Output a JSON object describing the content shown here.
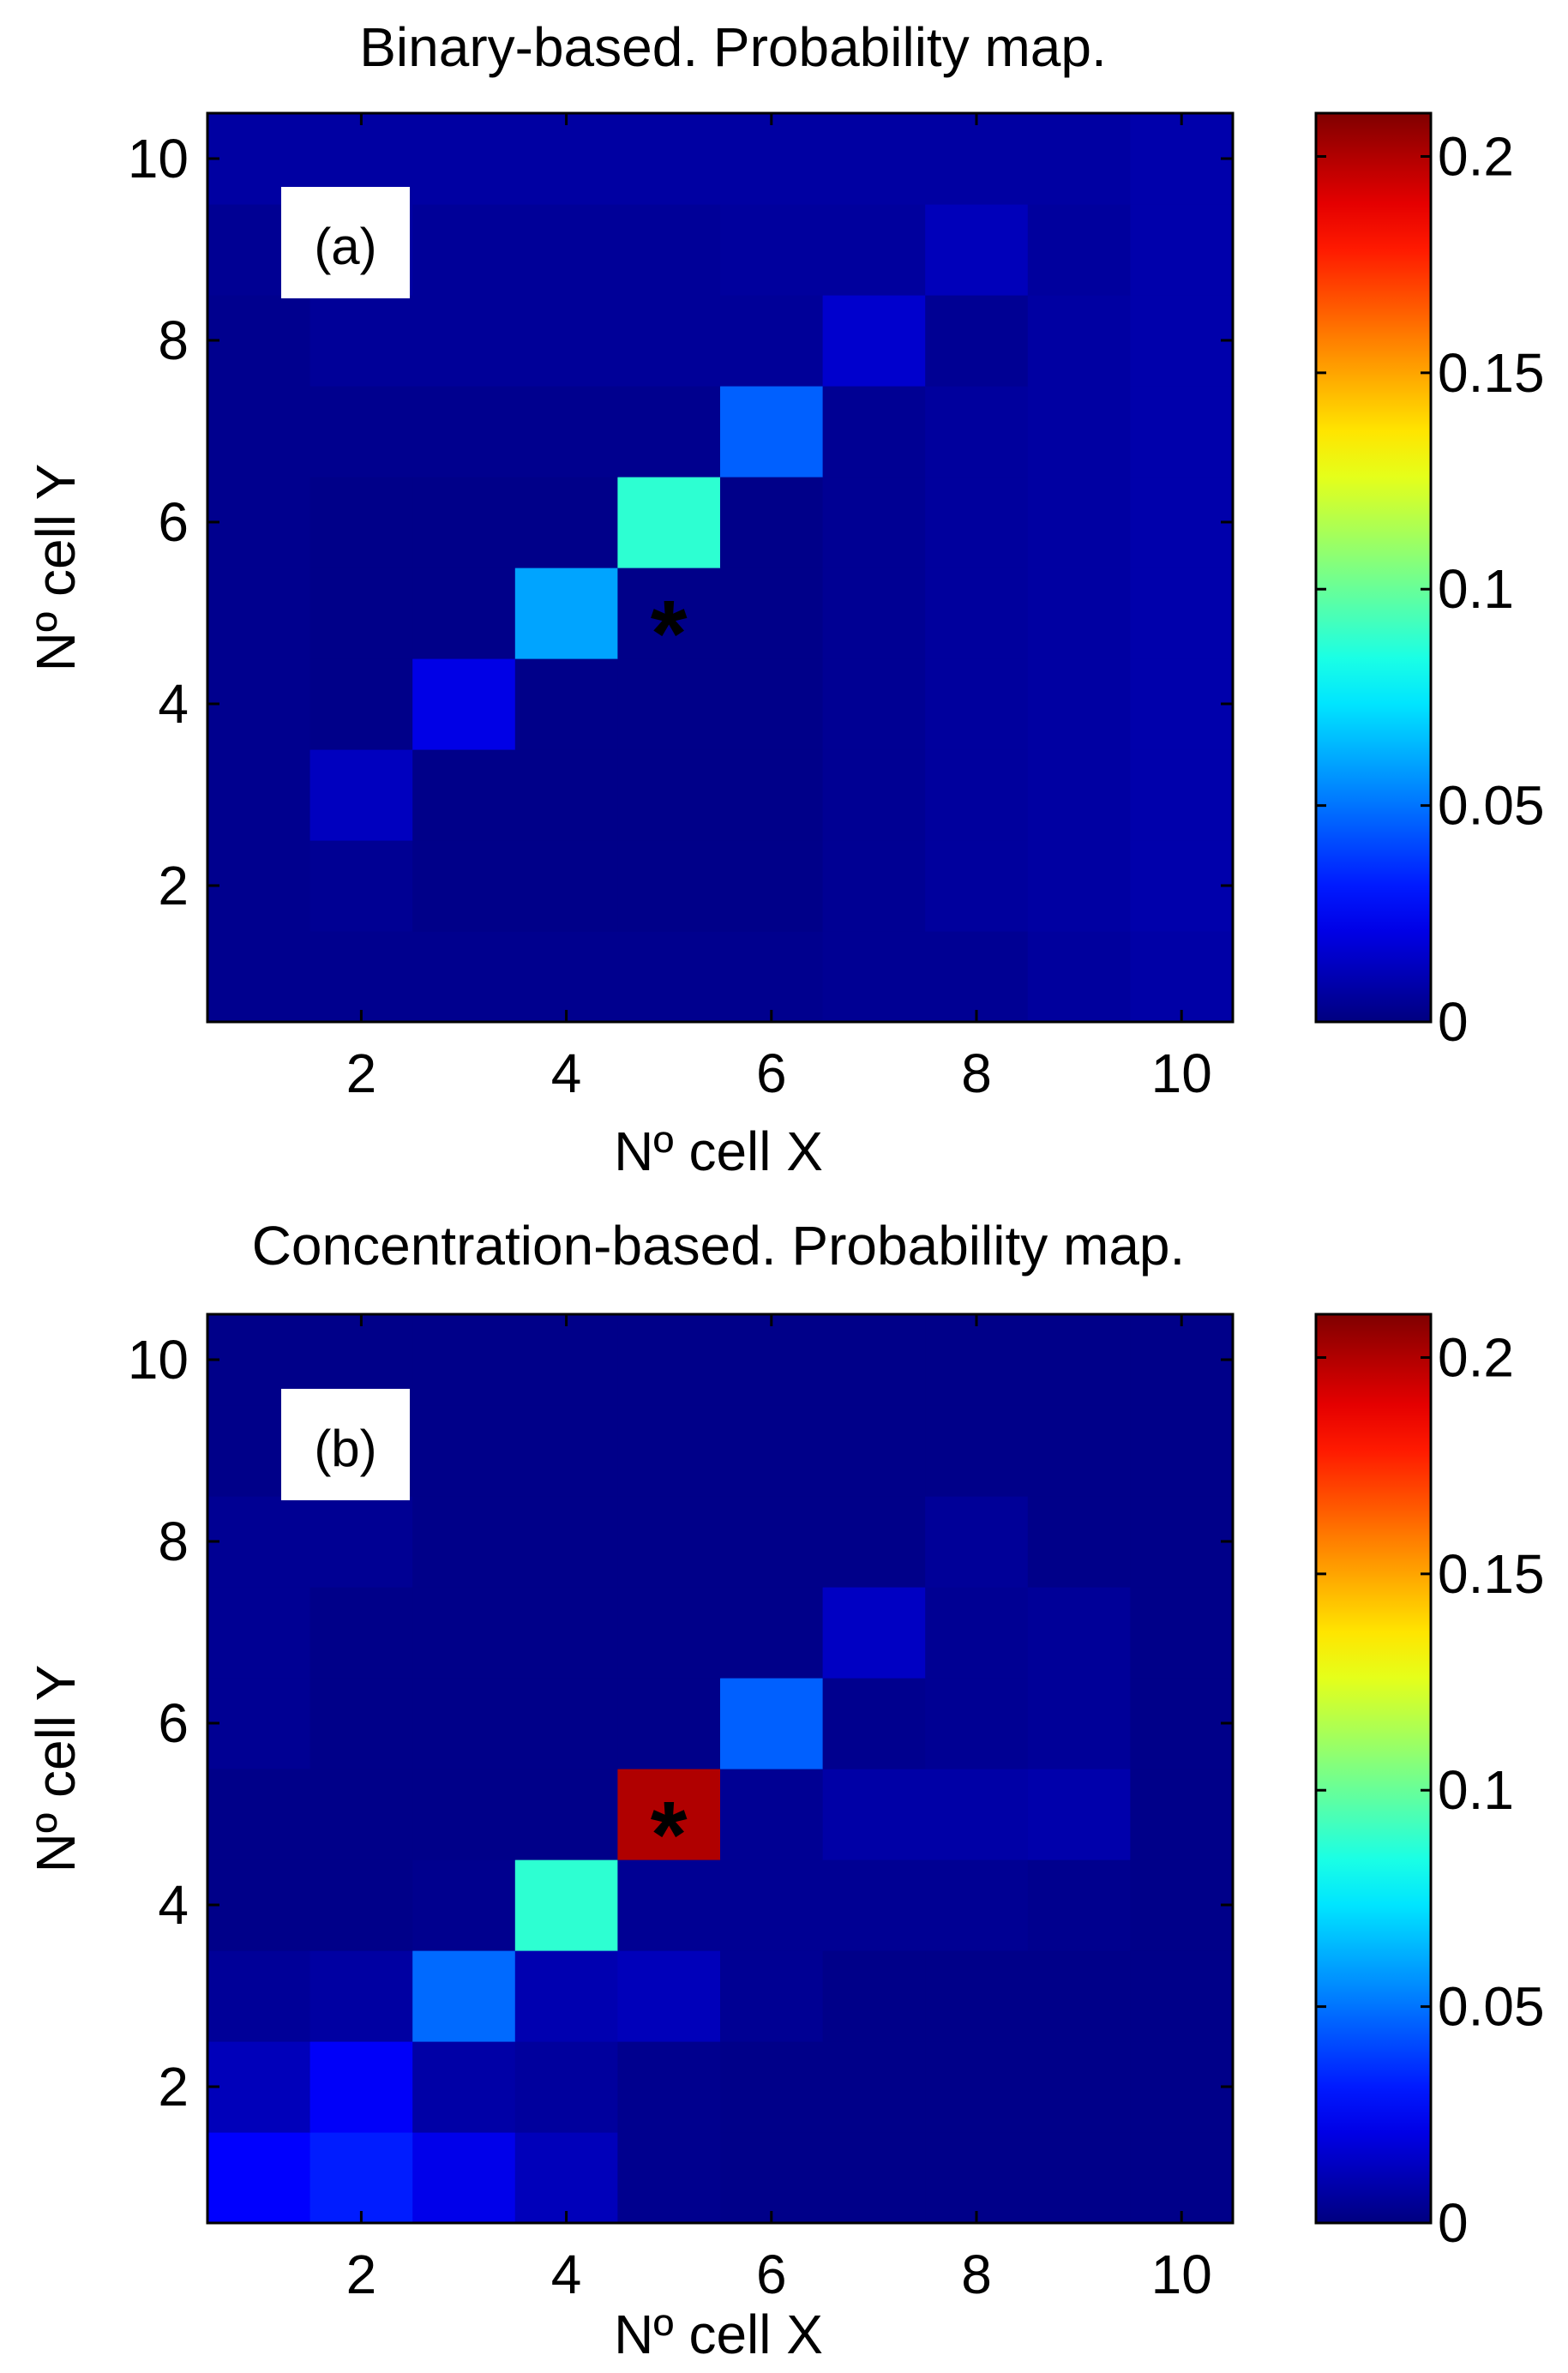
{
  "chart_data": [
    {
      "type": "heatmap",
      "id": "binary",
      "title": "Binary-based. Probability map.",
      "panel_label": "(a)",
      "xlabel": "Nº cell X",
      "ylabel": "Nº cell Y",
      "xticks": [
        "2",
        "4",
        "6",
        "8",
        "10"
      ],
      "yticks": [
        "10",
        "8",
        "6",
        "4",
        "2"
      ],
      "xlim": [
        0.5,
        10.5
      ],
      "ylim": [
        0.5,
        10.5
      ],
      "colorbar": {
        "min": 0,
        "max": 0.21,
        "ticks": [
          "0.2",
          "0.15",
          "0.1",
          "0.05",
          "0"
        ],
        "tick_values": [
          0.2,
          0.15,
          0.1,
          0.05,
          0
        ],
        "colormap": "jet"
      },
      "marker": {
        "symbol": "*",
        "x": 5,
        "y": 5
      },
      "values": [
        [
          0.003,
          0.003,
          0.003,
          0.003,
          0.003,
          0.003,
          0.004,
          0.004,
          0.006,
          0.008
        ],
        [
          0.003,
          0.004,
          0.002,
          0.002,
          0.002,
          0.002,
          0.004,
          0.006,
          0.007,
          0.009
        ],
        [
          0.003,
          0.013,
          0.002,
          0.002,
          0.002,
          0.002,
          0.004,
          0.006,
          0.007,
          0.009
        ],
        [
          0.003,
          0.002,
          0.021,
          0.002,
          0.002,
          0.002,
          0.004,
          0.006,
          0.007,
          0.009
        ],
        [
          0.003,
          0.002,
          0.002,
          0.06,
          0.002,
          0.002,
          0.004,
          0.006,
          0.007,
          0.009
        ],
        [
          0.003,
          0.002,
          0.002,
          0.002,
          0.088,
          0.002,
          0.004,
          0.006,
          0.007,
          0.009
        ],
        [
          0.003,
          0.003,
          0.003,
          0.003,
          0.003,
          0.046,
          0.004,
          0.006,
          0.007,
          0.009
        ],
        [
          0.003,
          0.005,
          0.005,
          0.005,
          0.005,
          0.005,
          0.016,
          0.004,
          0.007,
          0.009
        ],
        [
          0.004,
          0.007,
          0.005,
          0.005,
          0.005,
          0.006,
          0.006,
          0.012,
          0.006,
          0.009
        ],
        [
          0.007,
          0.007,
          0.007,
          0.007,
          0.007,
          0.007,
          0.007,
          0.007,
          0.007,
          0.009
        ]
      ]
    },
    {
      "type": "heatmap",
      "id": "concentration",
      "title": "Concentration-based. Probability map.",
      "panel_label": "(b)",
      "xlabel": "Nº cell X",
      "ylabel": "Nº cell Y",
      "xticks": [
        "2",
        "4",
        "6",
        "8",
        "10"
      ],
      "yticks": [
        "10",
        "8",
        "6",
        "4",
        "2"
      ],
      "xlim": [
        0.5,
        10.5
      ],
      "ylim": [
        0.5,
        10.5
      ],
      "colorbar": {
        "min": 0,
        "max": 0.21,
        "ticks": [
          "0.2",
          "0.15",
          "0.1",
          "0.05",
          "0"
        ],
        "tick_values": [
          0.2,
          0.15,
          0.1,
          0.05,
          0
        ],
        "colormap": "jet"
      },
      "marker": {
        "symbol": "*",
        "x": 5,
        "y": 5
      },
      "values": [
        [
          0.026,
          0.032,
          0.022,
          0.012,
          0.003,
          0.002,
          0.002,
          0.002,
          0.002,
          0.002
        ],
        [
          0.012,
          0.025,
          0.008,
          0.006,
          0.003,
          0.002,
          0.002,
          0.002,
          0.002,
          0.002
        ],
        [
          0.005,
          0.007,
          0.048,
          0.01,
          0.012,
          0.004,
          0.002,
          0.002,
          0.002,
          0.002
        ],
        [
          0.002,
          0.002,
          0.003,
          0.088,
          0.004,
          0.004,
          0.004,
          0.004,
          0.003,
          0.002
        ],
        [
          0.002,
          0.002,
          0.002,
          0.002,
          0.2,
          0.004,
          0.008,
          0.008,
          0.009,
          0.002
        ],
        [
          0.004,
          0.002,
          0.002,
          0.002,
          0.002,
          0.046,
          0.003,
          0.004,
          0.005,
          0.002
        ],
        [
          0.004,
          0.002,
          0.002,
          0.002,
          0.002,
          0.002,
          0.014,
          0.004,
          0.005,
          0.002
        ],
        [
          0.004,
          0.004,
          0.002,
          0.002,
          0.002,
          0.002,
          0.002,
          0.005,
          0.002,
          0.002
        ],
        [
          0.002,
          0.002,
          0.002,
          0.002,
          0.002,
          0.002,
          0.002,
          0.002,
          0.002,
          0.002
        ],
        [
          0.002,
          0.002,
          0.002,
          0.002,
          0.002,
          0.002,
          0.002,
          0.002,
          0.002,
          0.002
        ]
      ]
    }
  ]
}
